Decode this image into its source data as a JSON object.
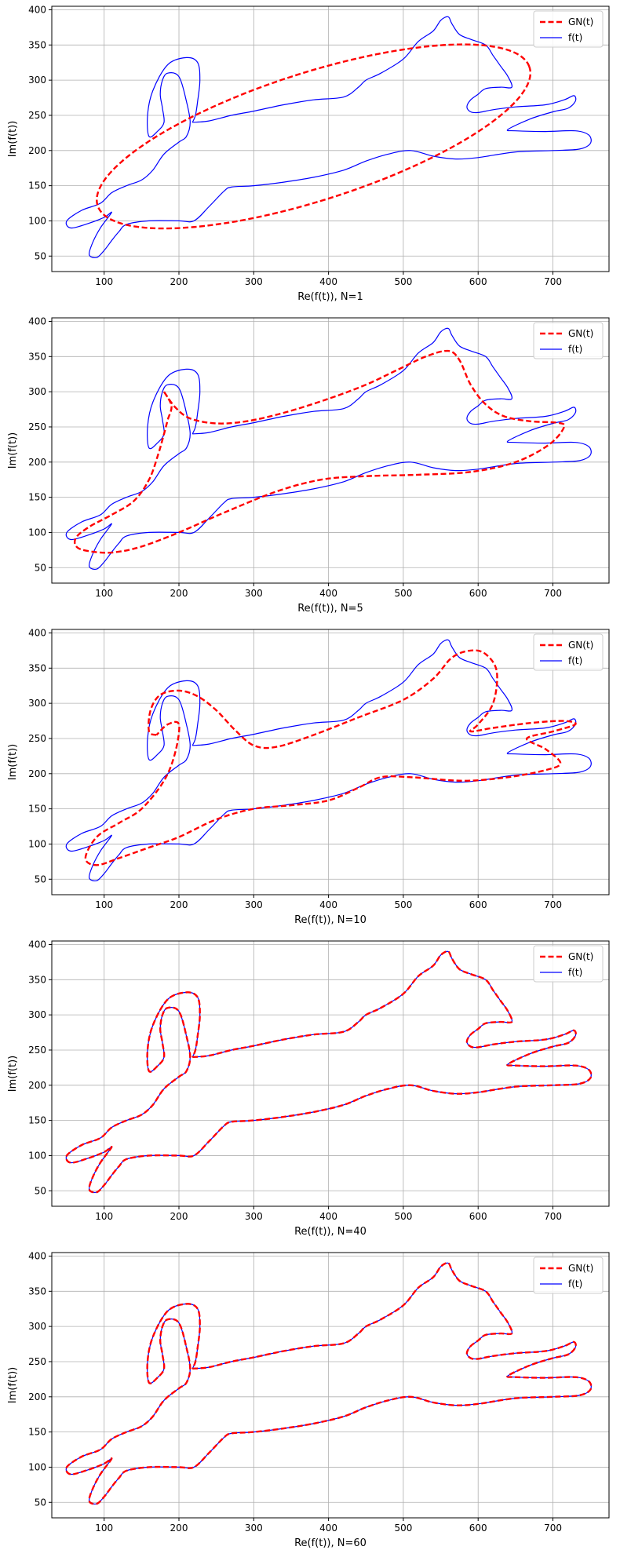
{
  "chart_data": [
    {
      "type": "line",
      "xlabel": "Re(f(t)), N=1",
      "ylabel": "Im(f(t))",
      "xlim": [
        30,
        775
      ],
      "ylim": [
        28,
        405
      ],
      "xticks": [
        100,
        200,
        300,
        400,
        500,
        600,
        700
      ],
      "yticks": [
        50,
        100,
        150,
        200,
        250,
        300,
        350,
        400
      ],
      "grid": true,
      "legend_position": "top-right",
      "series": [
        {
          "name": "GN(t)",
          "color": "#ff0000",
          "style": "dashed",
          "ellipse": {
            "cx": 380,
            "cy": 220,
            "rx": 305,
            "ry": 90,
            "angle_deg": 19
          }
        },
        {
          "name": "f(t)",
          "color": "#0000ff",
          "style": "solid",
          "shape": "f_outline"
        }
      ]
    },
    {
      "type": "line",
      "xlabel": "Re(f(t)), N=5",
      "ylabel": "Im(f(t))",
      "xlim": [
        30,
        775
      ],
      "ylim": [
        28,
        405
      ],
      "xticks": [
        100,
        200,
        300,
        400,
        500,
        600,
        700
      ],
      "yticks": [
        50,
        100,
        150,
        200,
        250,
        300,
        350,
        400
      ],
      "grid": true,
      "legend_position": "top-right",
      "series": [
        {
          "name": "GN(t)",
          "color": "#ff0000",
          "style": "dashed",
          "x": [
            180,
            190,
            185,
            180,
            172,
            160,
            140,
            110,
            80,
            62,
            65,
            90,
            115,
            150,
            200,
            260,
            330,
            390,
            450,
            520,
            590,
            650,
            695,
            715,
            705,
            670,
            635,
            610,
            590,
            575,
            560,
            530,
            490,
            450,
            400,
            340,
            290,
            250,
            215,
            195,
            180
          ],
          "y": [
            300,
            280,
            260,
            240,
            210,
            175,
            145,
            125,
            108,
            92,
            78,
            72,
            72,
            80,
            100,
            128,
            158,
            175,
            180,
            182,
            186,
            200,
            225,
            250,
            256,
            258,
            265,
            282,
            310,
            345,
            358,
            350,
            330,
            310,
            290,
            270,
            258,
            255,
            262,
            278,
            300
          ]
        },
        {
          "name": "f(t)",
          "color": "#0000ff",
          "style": "solid",
          "shape": "f_outline"
        }
      ]
    },
    {
      "type": "line",
      "xlabel": "Re(f(t)), N=10",
      "ylabel": "Im(f(t))",
      "xlim": [
        30,
        775
      ],
      "ylim": [
        28,
        405
      ],
      "xticks": [
        100,
        200,
        300,
        400,
        500,
        600,
        700
      ],
      "yticks": [
        50,
        100,
        150,
        200,
        250,
        300,
        350,
        400
      ],
      "grid": true,
      "legend_position": "top-right",
      "series": [
        {
          "name": "GN(t)",
          "color": "#ff0000",
          "style": "dashed",
          "x": [
            170,
            160,
            162,
            175,
            200,
            225,
            250,
            275,
            300,
            330,
            380,
            440,
            500,
            540,
            565,
            590,
            610,
            625,
            620,
            600,
            590,
            620,
            670,
            715,
            730,
            700,
            665,
            690,
            710,
            690,
            640,
            580,
            510,
            470,
            440,
            400,
            350,
            300,
            250,
            200,
            160,
            120,
            90,
            75,
            90,
            120,
            150,
            180,
            195,
            200,
            185,
            170
          ],
          "y": [
            255,
            260,
            290,
            312,
            318,
            310,
            290,
            262,
            240,
            238,
            255,
            280,
            305,
            335,
            365,
            375,
            370,
            345,
            300,
            270,
            260,
            265,
            272,
            275,
            270,
            260,
            250,
            235,
            215,
            205,
            195,
            190,
            195,
            195,
            180,
            162,
            155,
            150,
            135,
            110,
            95,
            80,
            70,
            80,
            110,
            130,
            150,
            190,
            230,
            270,
            270,
            255
          ]
        },
        {
          "name": "f(t)",
          "color": "#0000ff",
          "style": "solid",
          "shape": "f_outline"
        }
      ]
    },
    {
      "type": "line",
      "xlabel": "Re(f(t)), N=40",
      "ylabel": "Im(f(t))",
      "xlim": [
        30,
        775
      ],
      "ylim": [
        28,
        405
      ],
      "xticks": [
        100,
        200,
        300,
        400,
        500,
        600,
        700
      ],
      "yticks": [
        50,
        100,
        150,
        200,
        250,
        300,
        350,
        400
      ],
      "grid": true,
      "legend_position": "top-right",
      "series": [
        {
          "name": "GN(t)",
          "color": "#ff0000",
          "style": "dashed",
          "shape": "f_outline"
        },
        {
          "name": "f(t)",
          "color": "#0000ff",
          "style": "solid",
          "shape": "f_outline"
        }
      ]
    },
    {
      "type": "line",
      "xlabel": "Re(f(t)), N=60",
      "ylabel": "Im(f(t))",
      "xlim": [
        30,
        775
      ],
      "ylim": [
        28,
        405
      ],
      "xticks": [
        100,
        200,
        300,
        400,
        500,
        600,
        700
      ],
      "yticks": [
        50,
        100,
        150,
        200,
        250,
        300,
        350,
        400
      ],
      "grid": true,
      "legend_position": "top-right",
      "series": [
        {
          "name": "GN(t)",
          "color": "#ff0000",
          "style": "dashed",
          "shape": "f_outline"
        },
        {
          "name": "f(t)",
          "color": "#0000ff",
          "style": "solid",
          "shape": "f_outline"
        }
      ]
    }
  ],
  "f_outline": {
    "x": [
      218,
      240,
      270,
      300,
      340,
      380,
      420,
      440,
      450,
      470,
      500,
      520,
      540,
      550,
      560,
      565,
      575,
      590,
      610,
      620,
      630,
      640,
      645,
      630,
      610,
      600,
      590,
      585,
      590,
      600,
      620,
      650,
      690,
      715,
      728,
      730,
      720,
      700,
      670,
      640,
      650,
      690,
      730,
      748,
      750,
      735,
      700,
      650,
      600,
      570,
      540,
      510,
      480,
      450,
      420,
      380,
      340,
      300,
      270,
      260,
      240,
      220,
      200,
      160,
      130,
      120,
      110,
      100,
      90,
      80,
      85,
      95,
      110,
      100,
      75,
      55,
      50,
      70,
      95,
      110,
      130,
      150,
      165,
      180,
      200,
      210,
      215,
      210,
      200,
      185,
      178,
      175,
      178,
      180,
      172,
      160,
      158,
      165,
      185,
      210,
      225,
      228,
      225,
      222,
      218
    ],
    "y": [
      240,
      242,
      250,
      256,
      265,
      272,
      276,
      290,
      300,
      310,
      330,
      355,
      370,
      385,
      390,
      380,
      365,
      358,
      350,
      335,
      320,
      305,
      290,
      290,
      288,
      280,
      272,
      262,
      255,
      254,
      258,
      262,
      265,
      272,
      278,
      270,
      260,
      255,
      245,
      230,
      228,
      227,
      228,
      222,
      210,
      202,
      200,
      198,
      190,
      188,
      192,
      200,
      195,
      185,
      172,
      162,
      155,
      150,
      148,
      142,
      120,
      100,
      100,
      100,
      95,
      85,
      72,
      58,
      48,
      52,
      70,
      90,
      112,
      105,
      95,
      90,
      100,
      115,
      125,
      140,
      150,
      158,
      172,
      195,
      212,
      220,
      240,
      270,
      305,
      310,
      300,
      280,
      260,
      240,
      228,
      220,
      250,
      285,
      322,
      332,
      325,
      300,
      270,
      250,
      240
    ]
  }
}
